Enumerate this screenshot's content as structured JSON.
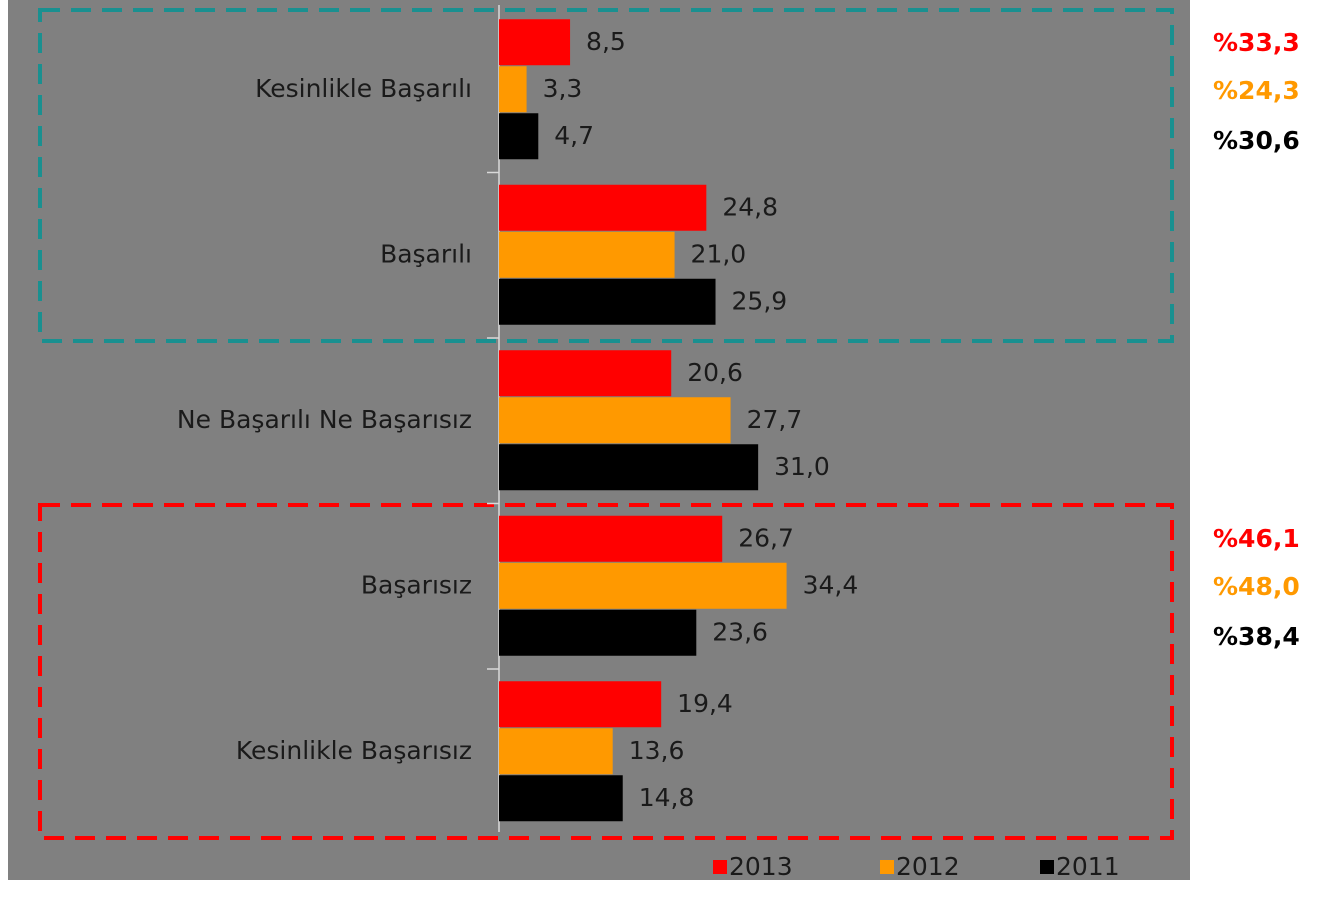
{
  "chart_data": {
    "type": "bar",
    "orientation": "horizontal",
    "categories": [
      "Kesinlikle Başarılı",
      "Başarılı",
      "Ne Başarılı Ne Başarısız",
      "Başarısız",
      "Kesinlikle Başarısız"
    ],
    "series": [
      {
        "name": "2013",
        "color": "#ff0000",
        "values": [
          8.5,
          24.8,
          20.6,
          26.7,
          19.4
        ],
        "value_labels": [
          "8,5",
          "24,8",
          "20,6",
          "26,7",
          "19,4"
        ]
      },
      {
        "name": "2012",
        "color": "#ff9900",
        "values": [
          3.3,
          21.0,
          27.7,
          34.4,
          13.6
        ],
        "value_labels": [
          "3,3",
          "21,0",
          "27,7",
          "34,4",
          "13,6"
        ]
      },
      {
        "name": "2011",
        "color": "#000000",
        "values": [
          4.7,
          25.9,
          31.0,
          23.6,
          14.8
        ],
        "value_labels": [
          "4,7",
          "25,9",
          "31,0",
          "23,6",
          "14,8"
        ]
      }
    ],
    "annotations": [
      {
        "text": "%33,3",
        "color": "#ff0000"
      },
      {
        "text": "%24,3",
        "color": "#ff9900"
      },
      {
        "text": "%30,6",
        "color": "#000000"
      },
      {
        "text": "%46,1",
        "color": "#ff0000"
      },
      {
        "text": "%48,0",
        "color": "#ff9900"
      },
      {
        "text": "%38,4",
        "color": "#000000"
      }
    ]
  }
}
